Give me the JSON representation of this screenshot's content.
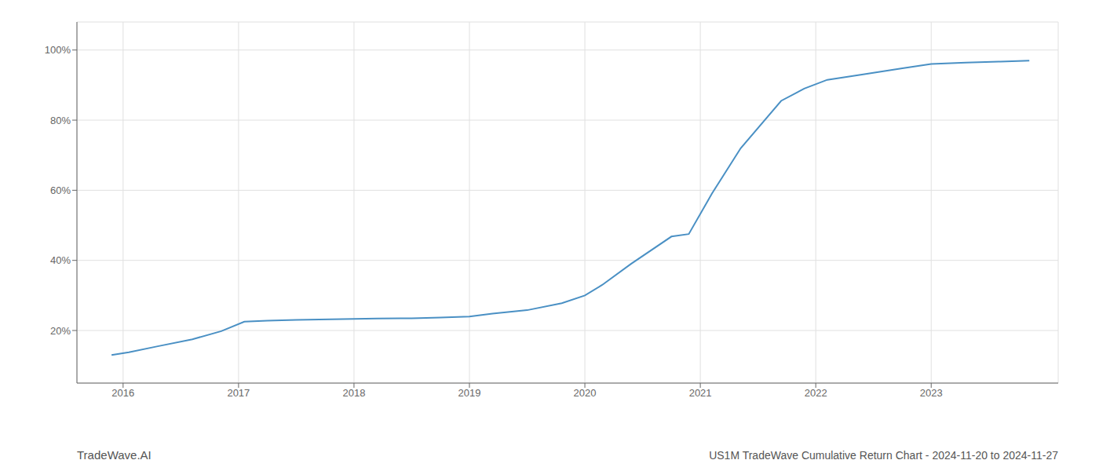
{
  "chart_data": {
    "type": "line",
    "title": "US1M TradeWave Cumulative Return Chart - 2024-11-20 to 2024-11-27",
    "annotations": [
      "TradeWave.AI"
    ],
    "x": [
      2015.9,
      2016.05,
      2016.3,
      2016.6,
      2016.85,
      2017.05,
      2017.25,
      2017.5,
      2017.8,
      2018.0,
      2018.2,
      2018.5,
      2018.75,
      2019.0,
      2019.2,
      2019.5,
      2019.8,
      2020.0,
      2020.15,
      2020.4,
      2020.75,
      2020.9,
      2021.1,
      2021.35,
      2021.7,
      2021.9,
      2022.1,
      2022.4,
      2022.75,
      2023.0,
      2023.3,
      2023.6,
      2023.85
    ],
    "values": [
      0.13,
      0.138,
      0.155,
      0.175,
      0.198,
      0.225,
      0.228,
      0.23,
      0.232,
      0.233,
      0.234,
      0.235,
      0.237,
      0.24,
      0.248,
      0.258,
      0.278,
      0.3,
      0.33,
      0.39,
      0.468,
      0.475,
      0.59,
      0.72,
      0.855,
      0.89,
      0.915,
      0.93,
      0.948,
      0.96,
      0.964,
      0.967,
      0.97
    ],
    "color": "#4a90c4",
    "xlim": [
      2015.6,
      2024.1
    ],
    "ylim": [
      0.05,
      1.08
    ],
    "xticks": [
      2016,
      2017,
      2018,
      2019,
      2020,
      2021,
      2022,
      2023
    ],
    "yticks": [
      {
        "value": 0.2,
        "label": "20%"
      },
      {
        "value": 0.4,
        "label": "40%"
      },
      {
        "value": 0.6,
        "label": "60%"
      },
      {
        "value": 0.8,
        "label": "80%"
      },
      {
        "value": 1.0,
        "label": "100%"
      }
    ],
    "grid": true
  }
}
